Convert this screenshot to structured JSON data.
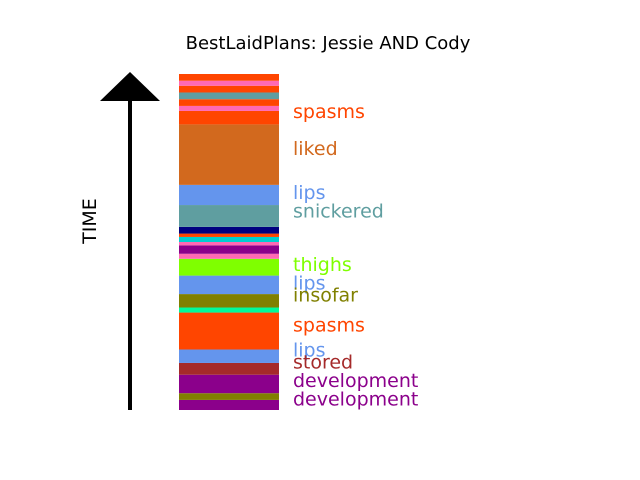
{
  "chart_data": {
    "type": "bar",
    "title": "BestLaidPlans: Jessie AND Cody",
    "ylabel": "TIME",
    "ylim": [
      0,
      100
    ],
    "segments": [
      {
        "start": 0.0,
        "end": 3.0,
        "color": "#8B008B"
      },
      {
        "start": 3.0,
        "end": 5.0,
        "color": "#808000"
      },
      {
        "start": 5.0,
        "end": 10.5,
        "color": "#8B008B"
      },
      {
        "start": 10.5,
        "end": 14.0,
        "color": "#A52A2A"
      },
      {
        "start": 14.0,
        "end": 18.0,
        "color": "#6495ED"
      },
      {
        "start": 18.0,
        "end": 29.0,
        "color": "#FF4500"
      },
      {
        "start": 29.0,
        "end": 30.5,
        "color": "#00FA9A"
      },
      {
        "start": 30.5,
        "end": 34.5,
        "color": "#808000"
      },
      {
        "start": 34.5,
        "end": 40.0,
        "color": "#6495ED"
      },
      {
        "start": 40.0,
        "end": 45.0,
        "color": "#7FFF00"
      },
      {
        "start": 45.0,
        "end": 46.5,
        "color": "#FF69B4"
      },
      {
        "start": 46.5,
        "end": 49.0,
        "color": "#8B008B"
      },
      {
        "start": 49.0,
        "end": 50.0,
        "color": "#FF69B4"
      },
      {
        "start": 50.0,
        "end": 51.5,
        "color": "#00CED1"
      },
      {
        "start": 51.5,
        "end": 52.5,
        "color": "#FF4500"
      },
      {
        "start": 52.5,
        "end": 54.5,
        "color": "#000080"
      },
      {
        "start": 54.5,
        "end": 61.0,
        "color": "#5F9EA0"
      },
      {
        "start": 61.0,
        "end": 67.0,
        "color": "#6495ED"
      },
      {
        "start": 67.0,
        "end": 85.0,
        "color": "#D2691E"
      },
      {
        "start": 85.0,
        "end": 89.0,
        "color": "#FF4500"
      },
      {
        "start": 89.0,
        "end": 90.5,
        "color": "#FF69B4"
      },
      {
        "start": 90.5,
        "end": 92.5,
        "color": "#FF4500"
      },
      {
        "start": 92.5,
        "end": 94.5,
        "color": "#5F9EA0"
      },
      {
        "start": 94.5,
        "end": 96.5,
        "color": "#FF4500"
      },
      {
        "start": 96.5,
        "end": 98.0,
        "color": "#FF69B4"
      },
      {
        "start": 98.0,
        "end": 100.0,
        "color": "#FF4500"
      }
    ],
    "labels": [
      {
        "text": "spasms",
        "at": 88.5,
        "color": "#FF4500"
      },
      {
        "text": "liked",
        "at": 77.5,
        "color": "#D2691E"
      },
      {
        "text": "lips",
        "at": 64.5,
        "color": "#6495ED"
      },
      {
        "text": "snickered",
        "at": 59.0,
        "color": "#5F9EA0"
      },
      {
        "text": "thighs",
        "at": 43.0,
        "color": "#7FFF00"
      },
      {
        "text": "lips",
        "at": 37.5,
        "color": "#6495ED"
      },
      {
        "text": "insofar",
        "at": 34.0,
        "color": "#808000"
      },
      {
        "text": "spasms",
        "at": 25.0,
        "color": "#FF4500"
      },
      {
        "text": "lips",
        "at": 17.5,
        "color": "#6495ED"
      },
      {
        "text": "stored",
        "at": 14.0,
        "color": "#A52A2A"
      },
      {
        "text": "development",
        "at": 8.5,
        "color": "#8B008B"
      },
      {
        "text": "development",
        "at": 3.0,
        "color": "#8B008B"
      }
    ]
  }
}
